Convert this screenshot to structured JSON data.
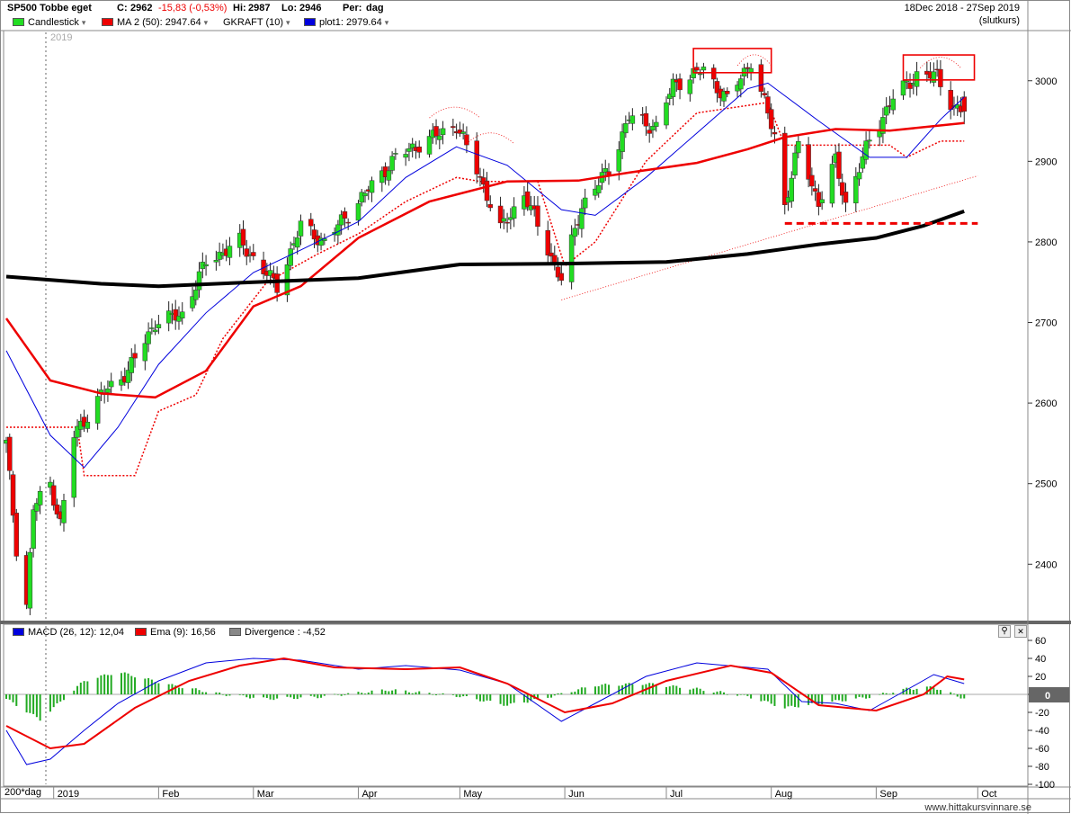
{
  "header": {
    "symbol": "SP500 Tobbe eget",
    "close_label": "C:",
    "close": "2962",
    "change": "-15,83 (-0,53%)",
    "hi_label": "Hi:",
    "hi": "2987",
    "lo_label": "Lo:",
    "lo": "2946",
    "period_label": "Per:",
    "period": "dag",
    "date_range": "18Dec 2018 - 27Sep 2019",
    "price_basis": "(slutkurs)"
  },
  "price_legend": [
    {
      "label": "Candlestick",
      "color": "#22dd22"
    },
    {
      "label": "MA 2 (50): 2947.64",
      "color": "#ee0000"
    },
    {
      "label": "GKRAFT (10)",
      "color": ""
    },
    {
      "label": "plot1: 2979.64",
      "color": "#0000dd"
    }
  ],
  "macd_legend": [
    {
      "label": "MACD (26, 12): 12,04",
      "color": "#0000dd"
    },
    {
      "label": "Ema (9): 16,56",
      "color": "#ee0000"
    },
    {
      "label": "Divergence : -4,52",
      "color": "#888888"
    }
  ],
  "year_marker": "2019",
  "x_axis": {
    "corner_label": "200*dag",
    "months": [
      "2019",
      "Feb",
      "Mar",
      "Apr",
      "May",
      "Jun",
      "Jul",
      "Aug",
      "Sep",
      "Oct"
    ]
  },
  "watermark": "www.hittakursvinnare.se",
  "colors": {
    "up": "#22dd22",
    "down": "#ee0000",
    "ma50": "#ee0000",
    "ma200": "#000000",
    "plot1": "#0000dd",
    "stop": "#ee0000",
    "hist": "#22aa22",
    "annot": "#ee0000"
  },
  "chart_data": [
    {
      "type": "candlestick",
      "title": "SP500 Tobbe eget",
      "x_range": [
        "2018-12-18",
        "2019-10-15"
      ],
      "ylim": [
        2330,
        3060
      ],
      "y_ticks": [
        2400,
        2500,
        2600,
        2700,
        2800,
        2900,
        3000
      ],
      "grid": false,
      "anchors": [
        [
          "2018-12-18",
          2550
        ],
        [
          "2018-12-21",
          2420
        ],
        [
          "2018-12-24",
          2350
        ],
        [
          "2018-12-26",
          2470
        ],
        [
          "2018-12-31",
          2500
        ],
        [
          "2019-01-03",
          2450
        ],
        [
          "2019-01-07",
          2560
        ],
        [
          "2019-01-15",
          2610
        ],
        [
          "2019-01-23",
          2640
        ],
        [
          "2019-01-31",
          2700
        ],
        [
          "2019-02-08",
          2710
        ],
        [
          "2019-02-15",
          2775
        ],
        [
          "2019-02-25",
          2800
        ],
        [
          "2019-03-08",
          2745
        ],
        [
          "2019-03-15",
          2820
        ],
        [
          "2019-03-22",
          2800
        ],
        [
          "2019-03-29",
          2835
        ],
        [
          "2019-04-12",
          2905
        ],
        [
          "2019-04-23",
          2930
        ],
        [
          "2019-04-30",
          2945
        ],
        [
          "2019-05-07",
          2880
        ],
        [
          "2019-05-13",
          2815
        ],
        [
          "2019-05-20",
          2860
        ],
        [
          "2019-05-31",
          2752
        ],
        [
          "2019-06-06",
          2845
        ],
        [
          "2019-06-14",
          2890
        ],
        [
          "2019-06-20",
          2955
        ],
        [
          "2019-06-28",
          2942
        ],
        [
          "2019-07-03",
          2995
        ],
        [
          "2019-07-12",
          3014
        ],
        [
          "2019-07-19",
          2976
        ],
        [
          "2019-07-26",
          3025
        ],
        [
          "2019-08-02",
          2932
        ],
        [
          "2019-08-05",
          2845
        ],
        [
          "2019-08-09",
          2919
        ],
        [
          "2019-08-15",
          2848
        ],
        [
          "2019-08-20",
          2900
        ],
        [
          "2019-08-23",
          2847
        ],
        [
          "2019-08-30",
          2926
        ],
        [
          "2019-09-06",
          2979
        ],
        [
          "2019-09-13",
          3007
        ],
        [
          "2019-09-19",
          3006
        ],
        [
          "2019-09-24",
          2966
        ],
        [
          "2019-09-27",
          2962
        ]
      ],
      "last_bar": {
        "date": "2019-09-27",
        "close": 2962,
        "high": 2987,
        "low": 2946
      },
      "series": [
        {
          "name": "MA 2 (50): 2947.64",
          "last": 2947.64,
          "points": [
            [
              "2018-12-18",
              2705
            ],
            [
              "2018-12-31",
              2628
            ],
            [
              "2019-01-15",
              2612
            ],
            [
              "2019-01-31",
              2607
            ],
            [
              "2019-02-15",
              2640
            ],
            [
              "2019-03-01",
              2720
            ],
            [
              "2019-03-15",
              2745
            ],
            [
              "2019-04-01",
              2805
            ],
            [
              "2019-04-22",
              2850
            ],
            [
              "2019-05-15",
              2875
            ],
            [
              "2019-06-05",
              2876
            ],
            [
              "2019-06-20",
              2886
            ],
            [
              "2019-07-10",
              2898
            ],
            [
              "2019-07-25",
              2915
            ],
            [
              "2019-08-05",
              2930
            ],
            [
              "2019-08-20",
              2940
            ],
            [
              "2019-09-05",
              2938
            ],
            [
              "2019-09-27",
              2947.64
            ]
          ]
        },
        {
          "name": "200 dag",
          "points": [
            [
              "2018-12-18",
              2757
            ],
            [
              "2019-01-15",
              2748
            ],
            [
              "2019-02-01",
              2745
            ],
            [
              "2019-03-01",
              2750
            ],
            [
              "2019-04-01",
              2755
            ],
            [
              "2019-05-01",
              2772
            ],
            [
              "2019-06-01",
              2773
            ],
            [
              "2019-07-01",
              2775
            ],
            [
              "2019-07-25",
              2785
            ],
            [
              "2019-08-15",
              2797
            ],
            [
              "2019-09-01",
              2805
            ],
            [
              "2019-09-15",
              2820
            ],
            [
              "2019-09-27",
              2838
            ]
          ]
        },
        {
          "name": "plot1: 2979.64",
          "last": 2979.64,
          "points": [
            [
              "2018-12-18",
              2665
            ],
            [
              "2018-12-31",
              2560
            ],
            [
              "2019-01-10",
              2520
            ],
            [
              "2019-01-20",
              2570
            ],
            [
              "2019-02-01",
              2648
            ],
            [
              "2019-02-15",
              2712
            ],
            [
              "2019-03-01",
              2762
            ],
            [
              "2019-03-15",
              2790
            ],
            [
              "2019-04-01",
              2825
            ],
            [
              "2019-04-15",
              2880
            ],
            [
              "2019-04-30",
              2918
            ],
            [
              "2019-05-15",
              2895
            ],
            [
              "2019-05-31",
              2840
            ],
            [
              "2019-06-10",
              2833
            ],
            [
              "2019-06-25",
              2880
            ],
            [
              "2019-07-10",
              2935
            ],
            [
              "2019-07-25",
              2990
            ],
            [
              "2019-07-31",
              2997
            ],
            [
              "2019-08-15",
              2950
            ],
            [
              "2019-08-30",
              2905
            ],
            [
              "2019-09-10",
              2905
            ],
            [
              "2019-09-20",
              2952
            ],
            [
              "2019-09-27",
              2979.64
            ]
          ]
        },
        {
          "name": "GKRAFT (10)",
          "points": [
            [
              "2018-12-18",
              2570
            ],
            [
              "2019-01-08",
              2570
            ],
            [
              "2019-01-10",
              2510
            ],
            [
              "2019-01-25",
              2510
            ],
            [
              "2019-02-01",
              2590
            ],
            [
              "2019-02-12",
              2610
            ],
            [
              "2019-02-20",
              2680
            ],
            [
              "2019-03-05",
              2750
            ],
            [
              "2019-03-20",
              2785
            ],
            [
              "2019-04-01",
              2810
            ],
            [
              "2019-04-15",
              2850
            ],
            [
              "2019-04-30",
              2880
            ],
            [
              "2019-05-07",
              2875
            ],
            [
              "2019-05-24",
              2875
            ],
            [
              "2019-06-01",
              2770
            ],
            [
              "2019-06-10",
              2800
            ],
            [
              "2019-06-25",
              2900
            ],
            [
              "2019-07-10",
              2960
            ],
            [
              "2019-07-31",
              2973
            ],
            [
              "2019-08-05",
              2920
            ],
            [
              "2019-09-05",
              2920
            ],
            [
              "2019-09-10",
              2905
            ],
            [
              "2019-09-20",
              2925
            ],
            [
              "2019-09-27",
              2925
            ]
          ]
        }
      ]
    },
    {
      "type": "bar",
      "title": "MACD (26, 12)",
      "ylim": [
        -100,
        60
      ],
      "y_ticks": [
        60,
        40,
        20,
        0,
        -20,
        -40,
        -60,
        -80,
        -100
      ],
      "zero_label": "0",
      "series": [
        {
          "name": "MACD (26, 12): 12,04",
          "last": 12.04,
          "points": [
            [
              "2018-12-18",
              -40
            ],
            [
              "2018-12-24",
              -78
            ],
            [
              "2018-12-31",
              -72
            ],
            [
              "2019-01-10",
              -40
            ],
            [
              "2019-01-20",
              -10
            ],
            [
              "2019-02-01",
              15
            ],
            [
              "2019-02-15",
              35
            ],
            [
              "2019-03-01",
              40
            ],
            [
              "2019-03-15",
              38
            ],
            [
              "2019-04-01",
              28
            ],
            [
              "2019-04-15",
              32
            ],
            [
              "2019-05-01",
              27
            ],
            [
              "2019-05-15",
              12
            ],
            [
              "2019-05-31",
              -30
            ],
            [
              "2019-06-10",
              -10
            ],
            [
              "2019-06-25",
              20
            ],
            [
              "2019-07-10",
              35
            ],
            [
              "2019-07-31",
              28
            ],
            [
              "2019-08-10",
              -8
            ],
            [
              "2019-08-20",
              -10
            ],
            [
              "2019-08-30",
              -18
            ],
            [
              "2019-09-10",
              5
            ],
            [
              "2019-09-18",
              22
            ],
            [
              "2019-09-27",
              12.04
            ]
          ]
        },
        {
          "name": "Ema (9): 16,56",
          "last": 16.56,
          "points": [
            [
              "2018-12-18",
              -35
            ],
            [
              "2018-12-31",
              -60
            ],
            [
              "2019-01-10",
              -55
            ],
            [
              "2019-01-25",
              -15
            ],
            [
              "2019-02-10",
              15
            ],
            [
              "2019-02-25",
              32
            ],
            [
              "2019-03-10",
              40
            ],
            [
              "2019-03-25",
              30
            ],
            [
              "2019-04-15",
              28
            ],
            [
              "2019-05-01",
              30
            ],
            [
              "2019-05-15",
              12
            ],
            [
              "2019-06-01",
              -20
            ],
            [
              "2019-06-15",
              -10
            ],
            [
              "2019-07-01",
              15
            ],
            [
              "2019-07-20",
              32
            ],
            [
              "2019-08-01",
              24
            ],
            [
              "2019-08-15",
              -12
            ],
            [
              "2019-09-01",
              -18
            ],
            [
              "2019-09-15",
              0
            ],
            [
              "2019-09-22",
              20
            ],
            [
              "2019-09-27",
              16.56
            ]
          ]
        },
        {
          "name": "Divergence : -4,52",
          "last": -4.52,
          "points": [
            [
              "2018-12-18",
              -5
            ],
            [
              "2018-12-28",
              -28
            ],
            [
              "2019-01-10",
              15
            ],
            [
              "2019-01-20",
              25
            ],
            [
              "2019-02-05",
              10
            ],
            [
              "2019-02-20",
              0
            ],
            [
              "2019-03-05",
              -5
            ],
            [
              "2019-03-20",
              -3
            ],
            [
              "2019-04-10",
              5
            ],
            [
              "2019-05-01",
              -2
            ],
            [
              "2019-05-15",
              -12
            ],
            [
              "2019-05-25",
              -5
            ],
            [
              "2019-06-10",
              10
            ],
            [
              "2019-06-25",
              12
            ],
            [
              "2019-07-10",
              6
            ],
            [
              "2019-07-25",
              -2
            ],
            [
              "2019-08-05",
              -15
            ],
            [
              "2019-08-15",
              -10
            ],
            [
              "2019-08-30",
              -3
            ],
            [
              "2019-09-10",
              6
            ],
            [
              "2019-09-18",
              8
            ],
            [
              "2019-09-27",
              -4.52
            ]
          ]
        }
      ]
    }
  ]
}
